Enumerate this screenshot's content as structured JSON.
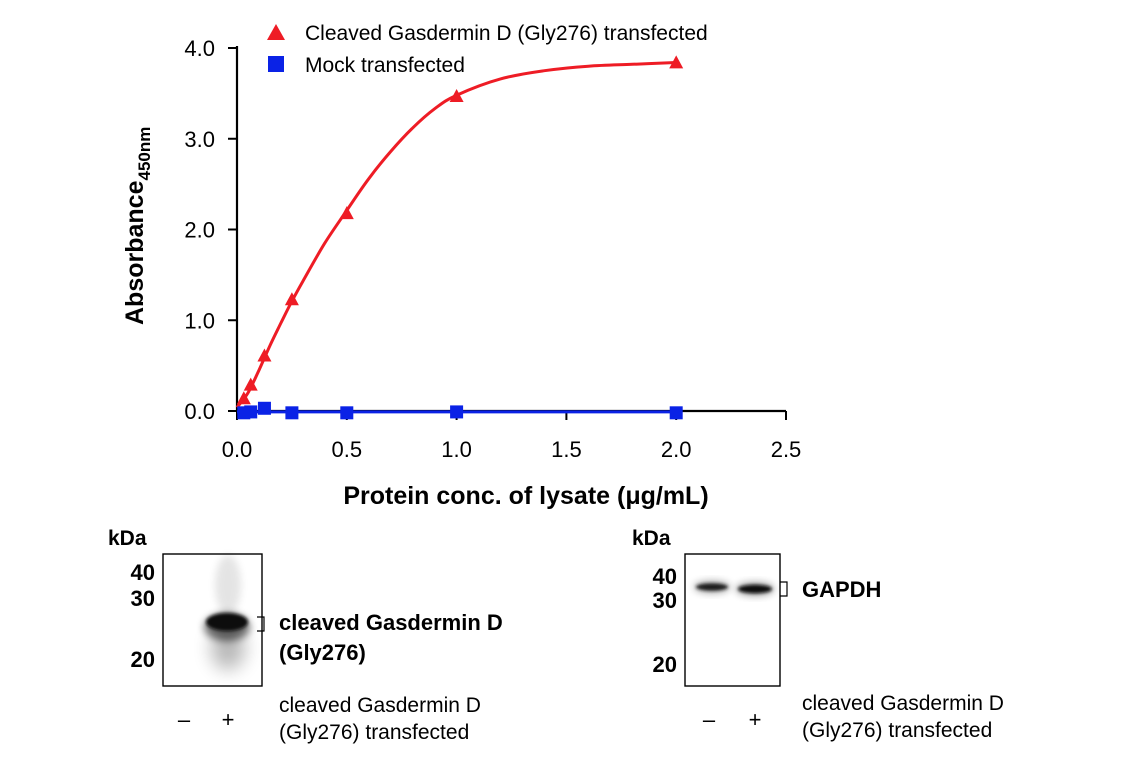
{
  "colors": {
    "cleaved_series": "#ee1c25",
    "mock_series": "#0a22e6",
    "axis": "#000000",
    "blot_band": "#111111",
    "blot_bg": "#ffffff"
  },
  "chart_data": {
    "type": "line",
    "xlabel": "Protein conc. of lysate (μg/mL)",
    "ylabel_main": "Absorbance",
    "ylabel_sub": "450nm",
    "xlim": [
      0,
      2.5
    ],
    "ylim": [
      0,
      4.0
    ],
    "x_ticks": [
      0.0,
      0.5,
      1.0,
      1.5,
      2.0,
      2.5
    ],
    "x_tick_labels": [
      "0.0",
      "0.5",
      "1.0",
      "1.5",
      "2.0",
      "2.5"
    ],
    "y_ticks": [
      0.0,
      1.0,
      2.0,
      3.0,
      4.0
    ],
    "y_tick_labels": [
      "0.0",
      "1.0",
      "2.0",
      "3.0",
      "4.0"
    ],
    "legend_position": "top",
    "series": [
      {
        "name": "Cleaved Gasdermin D (Gly276) transfected",
        "marker": "triangle",
        "color": "#ee1c25",
        "x": [
          0.031,
          0.0625,
          0.125,
          0.25,
          0.5,
          1.0,
          2.0
        ],
        "y": [
          0.13,
          0.28,
          0.6,
          1.22,
          2.17,
          3.46,
          3.83
        ],
        "fit": [
          [
            0.0,
            0.04
          ],
          [
            0.05,
            0.2
          ],
          [
            0.1,
            0.45
          ],
          [
            0.15,
            0.72
          ],
          [
            0.2,
            0.97
          ],
          [
            0.25,
            1.21
          ],
          [
            0.3,
            1.43
          ],
          [
            0.4,
            1.85
          ],
          [
            0.5,
            2.21
          ],
          [
            0.6,
            2.56
          ],
          [
            0.7,
            2.86
          ],
          [
            0.8,
            3.12
          ],
          [
            0.9,
            3.33
          ],
          [
            1.0,
            3.48
          ],
          [
            1.2,
            3.66
          ],
          [
            1.4,
            3.75
          ],
          [
            1.6,
            3.8
          ],
          [
            1.8,
            3.82
          ],
          [
            2.0,
            3.84
          ]
        ]
      },
      {
        "name": "Mock transfected",
        "marker": "square",
        "color": "#0a22e6",
        "x": [
          0.031,
          0.0625,
          0.125,
          0.25,
          0.5,
          1.0,
          2.0
        ],
        "y": [
          -0.02,
          -0.01,
          0.03,
          -0.02,
          -0.02,
          -0.01,
          -0.02
        ],
        "fit": [
          [
            0.0,
            -0.01
          ],
          [
            0.5,
            -0.01
          ],
          [
            1.0,
            -0.01
          ],
          [
            1.5,
            -0.01
          ],
          [
            2.0,
            -0.01
          ]
        ]
      }
    ]
  },
  "blots": [
    {
      "unit": "kDa",
      "mw_markers": [
        "40",
        "30",
        "20"
      ],
      "target_label_line1": "cleaved Gasdermin D",
      "target_label_line2": "(Gly276)",
      "lanes": [
        "–",
        "+"
      ],
      "caption_line1": "cleaved Gasdermin D",
      "caption_line2": "(Gly276) transfected"
    },
    {
      "unit": "kDa",
      "mw_markers": [
        "40",
        "30",
        "20"
      ],
      "target_label": "GAPDH",
      "lanes": [
        "–",
        "+"
      ],
      "caption_line1": "cleaved Gasdermin D",
      "caption_line2": "(Gly276) transfected"
    }
  ]
}
